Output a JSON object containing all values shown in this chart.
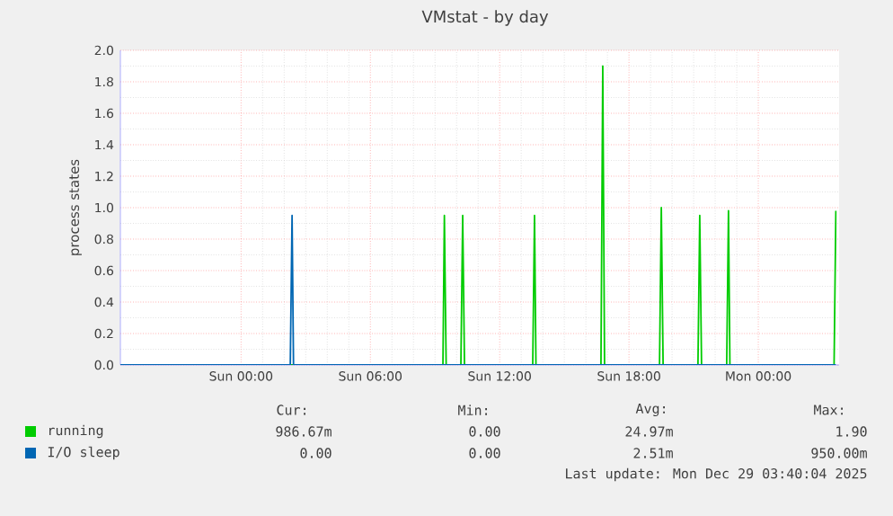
{
  "chart_data": {
    "type": "line",
    "title": "VMstat - by day",
    "ylabel": "process states",
    "xlim": [
      "2025-12-27T18:24",
      "2025-12-29T03:45"
    ],
    "ylim": [
      0,
      2.0
    ],
    "xticks": [
      {
        "value": "2025-12-28T00:00",
        "label": "Sun 00:00"
      },
      {
        "value": "2025-12-28T06:00",
        "label": "Sun 06:00"
      },
      {
        "value": "2025-12-28T12:00",
        "label": "Sun 12:00"
      },
      {
        "value": "2025-12-28T18:00",
        "label": "Sun 18:00"
      },
      {
        "value": "2025-12-29T00:00",
        "label": "Mon 00:00"
      }
    ],
    "yticks": [
      {
        "value": 0,
        "label": "0.0"
      },
      {
        "value": 0.2,
        "label": "0.2"
      },
      {
        "value": 0.4,
        "label": "0.4"
      },
      {
        "value": 0.6,
        "label": "0.6"
      },
      {
        "value": 0.8,
        "label": "0.8"
      },
      {
        "value": 1.0,
        "label": "1.0"
      },
      {
        "value": 1.2,
        "label": "1.2"
      },
      {
        "value": 1.4,
        "label": "1.4"
      },
      {
        "value": 1.6,
        "label": "1.6"
      },
      {
        "value": 1.8,
        "label": "1.8"
      },
      {
        "value": 2.0,
        "label": "2.0"
      }
    ],
    "grid": true,
    "legend": "bottom",
    "series": [
      {
        "name": "running",
        "color": "#00cc00",
        "x": [
          "2025-12-27T18:24",
          "2025-12-28T09:22",
          "2025-12-28T09:26",
          "2025-12-28T09:31",
          "2025-12-28T10:12",
          "2025-12-28T10:17",
          "2025-12-28T10:22",
          "2025-12-28T13:32",
          "2025-12-28T13:37",
          "2025-12-28T13:41",
          "2025-12-28T16:42",
          "2025-12-28T16:47",
          "2025-12-28T16:52",
          "2025-12-28T19:25",
          "2025-12-28T19:30",
          "2025-12-28T19:35",
          "2025-12-28T21:12",
          "2025-12-28T21:17",
          "2025-12-28T21:22",
          "2025-12-28T22:32",
          "2025-12-28T22:37",
          "2025-12-28T22:41",
          "2025-12-29T03:31",
          "2025-12-29T03:36"
        ],
        "values": [
          0,
          0,
          0.95,
          0,
          0,
          0.95,
          0,
          0,
          0.95,
          0,
          0,
          1.9,
          0,
          0,
          1.0,
          0,
          0,
          0.95,
          0,
          0,
          0.98,
          0,
          0,
          0.98
        ]
      },
      {
        "name": "I/O sleep",
        "color": "#0066b3",
        "x": [
          "2025-12-27T18:24",
          "2025-12-28T02:17",
          "2025-12-28T02:22",
          "2025-12-28T02:26",
          "2025-12-29T03:36"
        ],
        "values": [
          0,
          0,
          0.95,
          0,
          0
        ]
      }
    ],
    "annotations": [
      "Cur:",
      "Min:",
      "Avg:",
      "Max:",
      "986.67m",
      "0.00",
      "24.97m",
      "1.90",
      "0.00",
      "0.00",
      "2.51m",
      "950.00m",
      "Last update: Mon Dec 29 03:40:04 2025"
    ]
  }
}
